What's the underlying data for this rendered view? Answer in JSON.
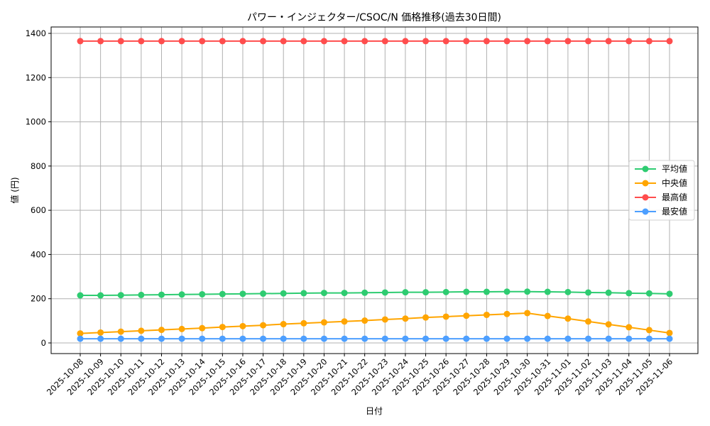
{
  "chart_data": {
    "type": "line",
    "title": "パワー・インジェクター/CSOC/N 価格推移(過去30日間)",
    "xlabel": "日付",
    "ylabel": "値 (円)",
    "ylim": [
      -45,
      1430
    ],
    "yticks": [
      0,
      200,
      400,
      600,
      800,
      1000,
      1200,
      1400
    ],
    "grid": true,
    "legend_position": "center right",
    "categories": [
      "2025-10-08",
      "2025-10-09",
      "2025-10-10",
      "2025-10-11",
      "2025-10-12",
      "2025-10-13",
      "2025-10-14",
      "2025-10-15",
      "2025-10-16",
      "2025-10-17",
      "2025-10-18",
      "2025-10-19",
      "2025-10-20",
      "2025-10-21",
      "2025-10-22",
      "2025-10-23",
      "2025-10-24",
      "2025-10-25",
      "2025-10-26",
      "2025-10-27",
      "2025-10-28",
      "2025-10-29",
      "2025-10-30",
      "2025-10-31",
      "2025-11-01",
      "2025-11-02",
      "2025-11-03",
      "2025-11-04",
      "2025-11-05",
      "2025-11-06"
    ],
    "series": [
      {
        "name": "平均値",
        "color": "#2ecc71",
        "values": [
          215,
          215,
          216,
          217,
          218,
          219,
          220,
          221,
          222,
          223,
          224,
          225,
          226,
          226,
          227,
          228,
          229,
          229,
          230,
          231,
          231,
          232,
          232,
          231,
          230,
          228,
          227,
          225,
          224,
          222
        ]
      },
      {
        "name": "中央値",
        "color": "#ffa500",
        "values": [
          43,
          47,
          51,
          55,
          59,
          63,
          67,
          72,
          76,
          80,
          85,
          89,
          93,
          97,
          101,
          106,
          110,
          115,
          119,
          123,
          127,
          131,
          135,
          122,
          110,
          97,
          84,
          71,
          58,
          45
        ]
      },
      {
        "name": "最高値",
        "color": "#ff4d4d",
        "values": [
          1365,
          1365,
          1365,
          1365,
          1365,
          1365,
          1365,
          1365,
          1365,
          1365,
          1365,
          1365,
          1365,
          1365,
          1365,
          1365,
          1365,
          1365,
          1365,
          1365,
          1365,
          1365,
          1365,
          1365,
          1365,
          1365,
          1365,
          1365,
          1365,
          1365
        ]
      },
      {
        "name": "最安値",
        "color": "#4d9fff",
        "values": [
          19,
          19,
          19,
          19,
          19,
          19,
          19,
          19,
          19,
          19,
          19,
          19,
          19,
          19,
          19,
          19,
          19,
          19,
          19,
          19,
          19,
          19,
          19,
          19,
          19,
          19,
          19,
          19,
          19,
          19
        ]
      }
    ]
  }
}
